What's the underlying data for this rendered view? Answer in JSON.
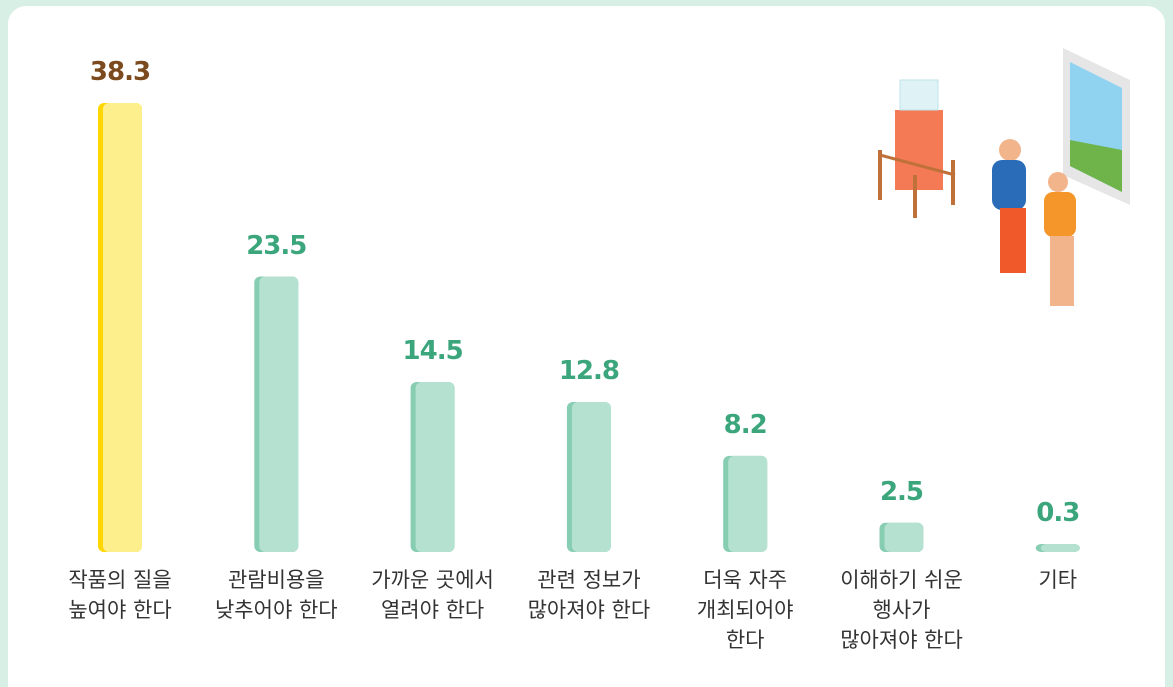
{
  "chart_data": {
    "type": "bar",
    "categories": [
      "작품의 질을\n높여야 한다",
      "관람비용을\n낮추어야 한다",
      "가까운 곳에서\n열려야 한다",
      "관련 정보가\n많아져야 한다",
      "더욱 자주\n개최되어야\n한다",
      "이해하기 쉬운\n행사가\n많아져야 한다",
      "기타"
    ],
    "values": [
      38.3,
      23.5,
      14.5,
      12.8,
      8.2,
      2.5,
      0.3
    ],
    "colors": [
      "#fdf08c",
      "#b4e1d0",
      "#b4e1d0",
      "#b4e1d0",
      "#b4e1d0",
      "#b4e1d0",
      "#b4e1d0"
    ],
    "edge_colors": [
      "#ffd600",
      "#86cdb2",
      "#86cdb2",
      "#86cdb2",
      "#86cdb2",
      "#86cdb2",
      "#86cdb2"
    ],
    "value_label_colors": [
      "#7b4a1e",
      "#3ba57c",
      "#3ba57c",
      "#3ba57c",
      "#3ba57c",
      "#3ba57c",
      "#3ba57c"
    ]
  }
}
